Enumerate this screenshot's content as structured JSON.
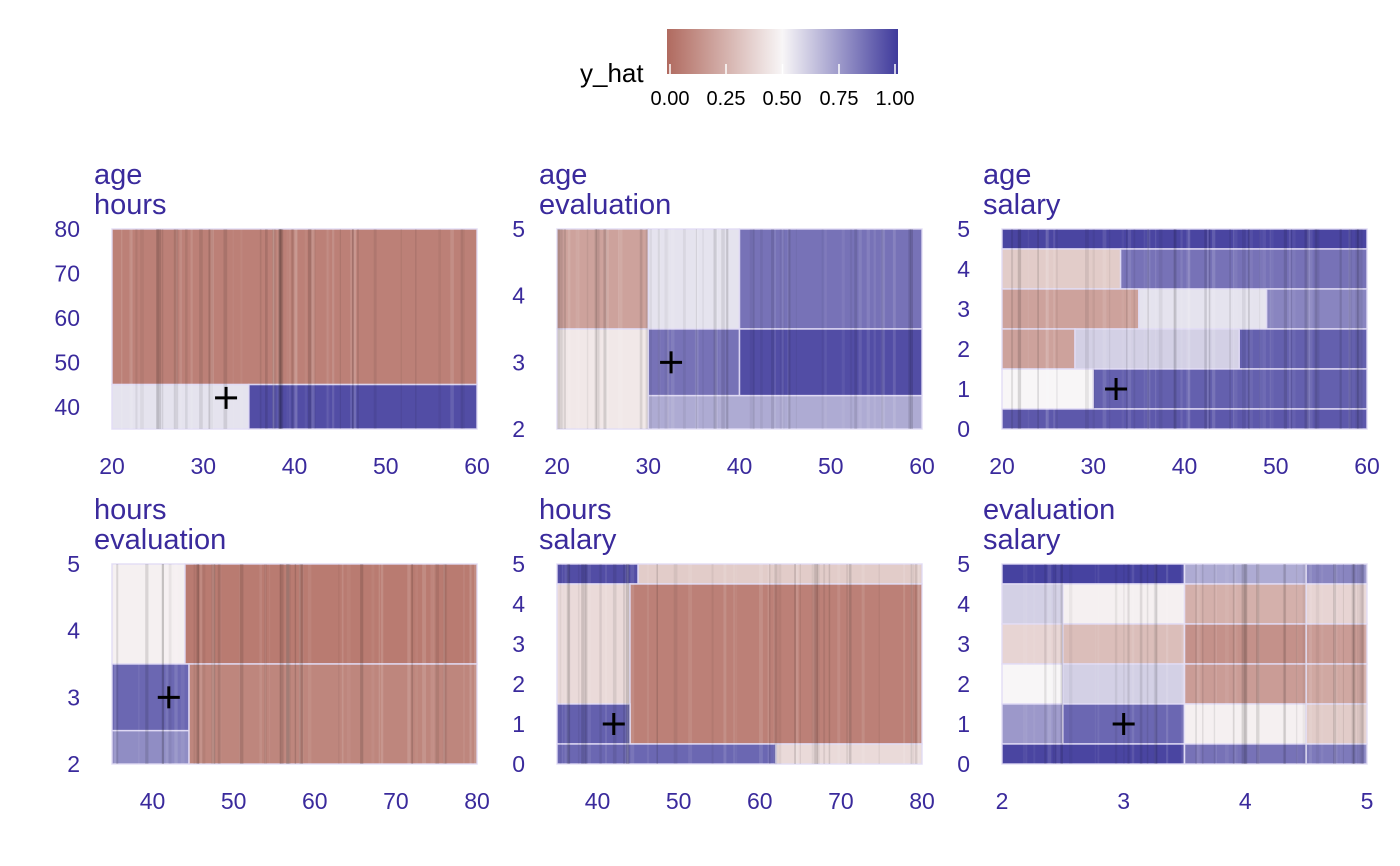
{
  "legend": {
    "title": "y_hat",
    "ticks": [
      "0.00",
      "0.25",
      "0.50",
      "0.75",
      "1.00"
    ],
    "colors": {
      "low": "#b06a5f",
      "mid": "#f8f6f7",
      "high": "#3f3a9c"
    }
  },
  "chart_data": [
    {
      "type": "heatmap",
      "title": [
        "age",
        "hours"
      ],
      "x_var": "age",
      "y_var": "hours",
      "xlim": [
        20,
        60
      ],
      "ylim": [
        35,
        80
      ],
      "xticks": [
        "20",
        "30",
        "40",
        "50",
        "60"
      ],
      "yticks": [
        "40",
        "50",
        "60",
        "70",
        "80"
      ],
      "marker": {
        "x": 32.5,
        "y": 42
      },
      "regions": [
        {
          "x": [
            20,
            60
          ],
          "y": [
            45,
            80
          ],
          "value": 0.08
        },
        {
          "x": [
            20,
            35
          ],
          "y": [
            35,
            45
          ],
          "value": 0.55
        },
        {
          "x": [
            35,
            60
          ],
          "y": [
            35,
            45
          ],
          "value": 0.95
        }
      ]
    },
    {
      "type": "heatmap",
      "title": [
        "age",
        "evaluation"
      ],
      "x_var": "age",
      "y_var": "evaluation",
      "xlim": [
        20,
        60
      ],
      "ylim": [
        2,
        5
      ],
      "xticks": [
        "20",
        "30",
        "40",
        "50",
        "60"
      ],
      "yticks": [
        "2",
        "3",
        "4",
        "5"
      ],
      "marker": {
        "x": 32.5,
        "y": 3
      },
      "regions": [
        {
          "x": [
            20,
            30
          ],
          "y": [
            3.5,
            5
          ],
          "value": 0.2
        },
        {
          "x": [
            30,
            40
          ],
          "y": [
            3.5,
            5
          ],
          "value": 0.55
        },
        {
          "x": [
            40,
            60
          ],
          "y": [
            3.5,
            5
          ],
          "value": 0.85
        },
        {
          "x": [
            20,
            30
          ],
          "y": [
            2,
            3.5
          ],
          "value": 0.45
        },
        {
          "x": [
            30,
            40
          ],
          "y": [
            2.5,
            3.5
          ],
          "value": 0.85
        },
        {
          "x": [
            40,
            60
          ],
          "y": [
            2.5,
            3.5
          ],
          "value": 0.95
        },
        {
          "x": [
            30,
            60
          ],
          "y": [
            2,
            2.5
          ],
          "value": 0.7
        }
      ]
    },
    {
      "type": "heatmap",
      "title": [
        "age",
        "salary"
      ],
      "x_var": "age",
      "y_var": "salary",
      "xlim": [
        20,
        60
      ],
      "ylim": [
        0,
        5
      ],
      "xticks": [
        "20",
        "30",
        "40",
        "50",
        "60"
      ],
      "yticks": [
        "0",
        "1",
        "2",
        "3",
        "4",
        "5"
      ],
      "marker": {
        "x": 32.5,
        "y": 1
      },
      "regions": [
        {
          "x": [
            20,
            60
          ],
          "y": [
            4.5,
            5
          ],
          "value": 0.97
        },
        {
          "x": [
            20,
            33
          ],
          "y": [
            3.5,
            4.5
          ],
          "value": 0.35
        },
        {
          "x": [
            33,
            60
          ],
          "y": [
            3.5,
            4.5
          ],
          "value": 0.85
        },
        {
          "x": [
            20,
            35
          ],
          "y": [
            2.5,
            3.5
          ],
          "value": 0.2
        },
        {
          "x": [
            35,
            49
          ],
          "y": [
            2.5,
            3.5
          ],
          "value": 0.55
        },
        {
          "x": [
            49,
            60
          ],
          "y": [
            2.5,
            3.5
          ],
          "value": 0.8
        },
        {
          "x": [
            20,
            28
          ],
          "y": [
            1.5,
            2.5
          ],
          "value": 0.2
        },
        {
          "x": [
            28,
            46
          ],
          "y": [
            1.5,
            2.5
          ],
          "value": 0.6
        },
        {
          "x": [
            46,
            60
          ],
          "y": [
            1.5,
            2.5
          ],
          "value": 0.9
        },
        {
          "x": [
            20,
            30
          ],
          "y": [
            0.5,
            1.5
          ],
          "value": 0.5
        },
        {
          "x": [
            30,
            60
          ],
          "y": [
            0.5,
            1.5
          ],
          "value": 0.9
        },
        {
          "x": [
            20,
            60
          ],
          "y": [
            0,
            0.5
          ],
          "value": 0.92
        }
      ]
    },
    {
      "type": "heatmap",
      "title": [
        "hours",
        "evaluation"
      ],
      "x_var": "hours",
      "y_var": "evaluation",
      "xlim": [
        35,
        80
      ],
      "ylim": [
        2,
        5
      ],
      "xticks": [
        "40",
        "50",
        "60",
        "70",
        "80"
      ],
      "yticks": [
        "2",
        "3",
        "4",
        "5"
      ],
      "marker": {
        "x": 42,
        "y": 3
      },
      "regions": [
        {
          "x": [
            35,
            44
          ],
          "y": [
            3.5,
            5
          ],
          "value": 0.48
        },
        {
          "x": [
            44,
            80
          ],
          "y": [
            3.5,
            5
          ],
          "value": 0.06
        },
        {
          "x": [
            35,
            44.5
          ],
          "y": [
            2.5,
            3.5
          ],
          "value": 0.88
        },
        {
          "x": [
            35,
            44.5
          ],
          "y": [
            2,
            2.5
          ],
          "value": 0.78
        },
        {
          "x": [
            44.5,
            80
          ],
          "y": [
            2,
            3.5
          ],
          "value": 0.1
        }
      ]
    },
    {
      "type": "heatmap",
      "title": [
        "hours",
        "salary"
      ],
      "x_var": "hours",
      "y_var": "salary",
      "xlim": [
        35,
        80
      ],
      "ylim": [
        0,
        5
      ],
      "xticks": [
        "40",
        "50",
        "60",
        "70",
        "80"
      ],
      "yticks": [
        "0",
        "1",
        "2",
        "3",
        "4",
        "5"
      ],
      "marker": {
        "x": 42,
        "y": 1
      },
      "regions": [
        {
          "x": [
            35,
            45
          ],
          "y": [
            4.5,
            5
          ],
          "value": 0.95
        },
        {
          "x": [
            45,
            80
          ],
          "y": [
            4.5,
            5
          ],
          "value": 0.35
        },
        {
          "x": [
            35,
            44
          ],
          "y": [
            1.5,
            4.5
          ],
          "value": 0.4
        },
        {
          "x": [
            44,
            80
          ],
          "y": [
            0.5,
            4.5
          ],
          "value": 0.08
        },
        {
          "x": [
            35,
            44
          ],
          "y": [
            0.5,
            1.5
          ],
          "value": 0.9
        },
        {
          "x": [
            35,
            62
          ],
          "y": [
            0,
            0.5
          ],
          "value": 0.88
        },
        {
          "x": [
            62,
            80
          ],
          "y": [
            0,
            0.5
          ],
          "value": 0.4
        }
      ]
    },
    {
      "type": "heatmap",
      "title": [
        "evaluation",
        "salary"
      ],
      "x_var": "evaluation",
      "y_var": "salary",
      "xlim": [
        2,
        5
      ],
      "ylim": [
        0,
        5
      ],
      "xticks": [
        "2",
        "3",
        "4",
        "5"
      ],
      "yticks": [
        "0",
        "1",
        "2",
        "3",
        "4",
        "5"
      ],
      "marker": {
        "x": 3,
        "y": 1
      },
      "regions": [
        {
          "x": [
            2,
            3.5
          ],
          "y": [
            4.5,
            5
          ],
          "value": 0.98
        },
        {
          "x": [
            3.5,
            4.5
          ],
          "y": [
            4.5,
            5
          ],
          "value": 0.7
        },
        {
          "x": [
            4.5,
            5
          ],
          "y": [
            4.5,
            5
          ],
          "value": 0.8
        },
        {
          "x": [
            2,
            2.5
          ],
          "y": [
            3.5,
            4.5
          ],
          "value": 0.6
        },
        {
          "x": [
            2.5,
            3.5
          ],
          "y": [
            3.5,
            4.5
          ],
          "value": 0.48
        },
        {
          "x": [
            3.5,
            4.5
          ],
          "y": [
            3.5,
            4.5
          ],
          "value": 0.25
        },
        {
          "x": [
            4.5,
            5
          ],
          "y": [
            3.5,
            4.5
          ],
          "value": 0.38
        },
        {
          "x": [
            2,
            2.5
          ],
          "y": [
            2.5,
            3.5
          ],
          "value": 0.38
        },
        {
          "x": [
            2.5,
            3.5
          ],
          "y": [
            2.5,
            3.5
          ],
          "value": 0.3
        },
        {
          "x": [
            3.5,
            4.5
          ],
          "y": [
            2.5,
            3.5
          ],
          "value": 0.14
        },
        {
          "x": [
            4.5,
            5
          ],
          "y": [
            2.5,
            3.5
          ],
          "value": 0.18
        },
        {
          "x": [
            2,
            2.5
          ],
          "y": [
            1.5,
            2.5
          ],
          "value": 0.5
        },
        {
          "x": [
            2.5,
            3.5
          ],
          "y": [
            1.5,
            2.5
          ],
          "value": 0.6
        },
        {
          "x": [
            3.5,
            4.5
          ],
          "y": [
            1.5,
            2.5
          ],
          "value": 0.18
        },
        {
          "x": [
            4.5,
            5
          ],
          "y": [
            1.5,
            2.5
          ],
          "value": 0.22
        },
        {
          "x": [
            2,
            2.5
          ],
          "y": [
            0.5,
            1.5
          ],
          "value": 0.75
        },
        {
          "x": [
            2.5,
            3.5
          ],
          "y": [
            0.5,
            1.5
          ],
          "value": 0.88
        },
        {
          "x": [
            3.5,
            4.5
          ],
          "y": [
            0.5,
            1.5
          ],
          "value": 0.48
        },
        {
          "x": [
            4.5,
            5
          ],
          "y": [
            0.5,
            1.5
          ],
          "value": 0.35
        },
        {
          "x": [
            2,
            3.5
          ],
          "y": [
            0,
            0.5
          ],
          "value": 0.97
        },
        {
          "x": [
            3.5,
            4.5
          ],
          "y": [
            0,
            0.5
          ],
          "value": 0.85
        },
        {
          "x": [
            4.5,
            5
          ],
          "y": [
            0,
            0.5
          ],
          "value": 0.83
        }
      ]
    }
  ]
}
